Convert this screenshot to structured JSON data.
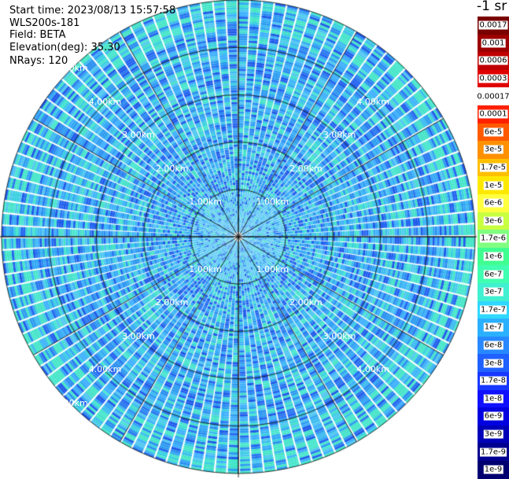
{
  "info": {
    "start_time": "Start time: 2023/08/13 15:57:58",
    "instrument": "WLS200s-181",
    "field": "Field: BETA",
    "elevation": "Elevation(deg): 35.30",
    "nrays": "NRays: 120"
  },
  "chart_data": {
    "type": "heatmap",
    "projection": "polar (PPI scan)",
    "rays": 120,
    "max_range_km": 5.0,
    "range_rings_km": [
      1,
      2,
      3,
      4,
      5
    ],
    "range_labels": [
      "1.00km",
      "2.00km",
      "3.00km",
      "4.00km",
      "5.00km"
    ],
    "field": "BETA",
    "colorbar": {
      "unit_label": "-1 sr",
      "labels": [
        "0.0017",
        "0.001",
        "0.0006",
        "0.0003",
        "0.00017",
        "0.0001",
        "6e-5",
        "3e-5",
        "1.7e-5",
        "1e-5",
        "6e-6",
        "3e-6",
        "1.7e-6",
        "1e-6",
        "6e-7",
        "3e-7",
        "1.7e-7",
        "1e-7",
        "6e-8",
        "3e-8",
        "1.7e-8",
        "1e-8",
        "6e-9",
        "3e-9",
        "1.7e-9",
        "1e-9"
      ],
      "colors": [
        "#7a0000",
        "#9c0000",
        "#c00000",
        "#e00000",
        "#ffffff",
        "#ff2000",
        "#ff5a00",
        "#ff9000",
        "#ffc000",
        "#ffe800",
        "#ffff40",
        "#c8ff40",
        "#80ff80",
        "#40ff90",
        "#40ffb0",
        "#40f0d0",
        "#30d8ff",
        "#2ab0ff",
        "#2888ff",
        "#2060ff",
        "#1838ff",
        "#1010ff",
        "#0000e0",
        "#0000b8",
        "#000090",
        "#000070"
      ]
    },
    "dominant_value_range": [
      "1e-8",
      "1e-7"
    ]
  }
}
